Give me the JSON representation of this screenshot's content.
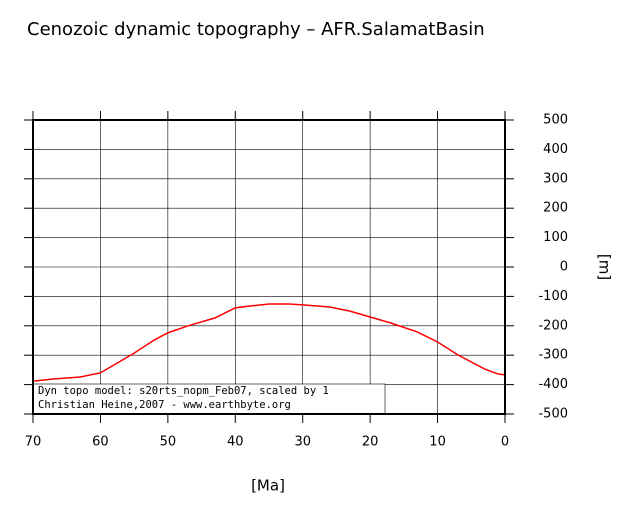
{
  "chart_data": {
    "type": "line",
    "title": "Cenozoic dynamic topography – AFR.SalamatBasin",
    "x_label": "[Ma]",
    "y_label": "[m]",
    "x": [
      70,
      67,
      63,
      60,
      55,
      52,
      50,
      47,
      43,
      40,
      38,
      35,
      32,
      30,
      26,
      23,
      20,
      17,
      13,
      10,
      7,
      3,
      1,
      0
    ],
    "series": [
      {
        "name": "Dyn topo",
        "color": "#ff0000",
        "values": [
          -388,
          -381,
          -374,
          -360,
          -293,
          -248,
          -224,
          -200,
          -173,
          -139,
          -133,
          -126,
          -126,
          -129,
          -136,
          -150,
          -170,
          -190,
          -221,
          -255,
          -299,
          -347,
          -364,
          -367
        ]
      }
    ],
    "xlim": [
      70,
      0
    ],
    "xticks": [
      70,
      60,
      50,
      40,
      30,
      20,
      10,
      0
    ],
    "ylim": [
      -500,
      500
    ],
    "yticks": [
      -500,
      -400,
      -300,
      -200,
      -100,
      0,
      100,
      200,
      300,
      400,
      500
    ],
    "grid": true,
    "annotations": [
      "Dyn topo model: s20rts_nopm_Feb07, scaled by 1",
      "Christian Heine,2007 - www.earthbyte.org"
    ]
  }
}
